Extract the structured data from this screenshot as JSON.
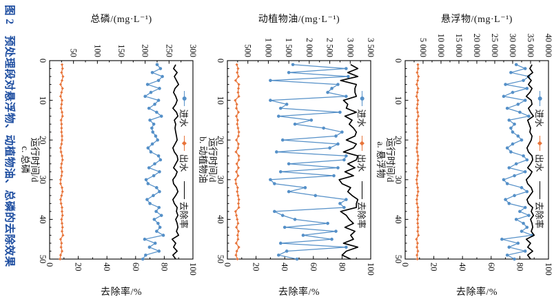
{
  "figure": {
    "caption": "图 2　预处理段对悬浮物、动植物油、总磷的去除效果",
    "caption_color": "#1d4da0"
  },
  "legend": {
    "influent": "进水",
    "effluent": "出水",
    "removal": "去除率"
  },
  "colors": {
    "influent": "#5590c8",
    "effluent": "#e8743a",
    "removal": "#000000",
    "axis": "#000000"
  },
  "days": [
    1,
    2,
    3,
    4,
    5,
    6,
    7,
    8,
    9,
    10,
    11,
    12,
    13,
    14,
    15,
    16,
    17,
    18,
    19,
    20,
    21,
    22,
    23,
    24,
    25,
    26,
    27,
    28,
    29,
    30,
    31,
    32,
    33,
    34,
    35,
    36,
    37,
    38,
    39,
    40,
    41,
    42,
    43,
    44,
    45,
    46,
    47,
    48,
    49,
    50
  ],
  "chart_data": [
    {
      "id": "a",
      "type": "line",
      "subtitle": "a. 悬浮物",
      "y_left_title": "悬浮物/(mg·L⁻¹)",
      "y_right_title": "去除率/%",
      "x_title": "运行时间/d",
      "x_range": [
        0,
        50
      ],
      "x_minor_step": 2,
      "x_tick_values": [
        0,
        10,
        20,
        30,
        40,
        50
      ],
      "x_tick_labels": [
        "0",
        "10",
        "20",
        "30",
        "40",
        "50"
      ],
      "y_left_range": [
        0,
        40000
      ],
      "y_left_minor_step": 2500,
      "y_left_tick_values": [
        5000,
        10000,
        15000,
        20000,
        25000,
        30000,
        35000,
        40000
      ],
      "y_left_tick_labels": [
        "5 000",
        "10 000",
        "15 000",
        "20 000",
        "25 000",
        "30 000",
        "35 000",
        "40 000"
      ],
      "y_right_range": [
        0,
        100
      ],
      "y_right_minor_step": 10,
      "y_right_tick_values": [
        0,
        20,
        40,
        60,
        80,
        100
      ],
      "y_right_tick_labels": [
        "0",
        "20",
        "40",
        "60",
        "80",
        "100"
      ],
      "series": [
        {
          "name": "进水",
          "role": "influent",
          "axis": "left",
          "marker": "circle",
          "values": [
            31000,
            33500,
            29500,
            34500,
            33000,
            28000,
            34000,
            30000,
            27500,
            33500,
            31500,
            28500,
            32000,
            34500,
            29000,
            30500,
            29500,
            30000,
            31500,
            32500,
            30000,
            28500,
            29500,
            33000,
            34000,
            31000,
            29000,
            33500,
            30500,
            27500,
            28500,
            32500,
            34000,
            30500,
            28000,
            29000,
            33500,
            32000,
            34500,
            31000,
            33000,
            34000,
            32500,
            35500,
            27000,
            31500,
            29000,
            33500,
            28500,
            30500
          ]
        },
        {
          "name": "出水",
          "role": "effluent",
          "axis": "left",
          "marker": "diamond",
          "values": [
            3550,
            3600,
            3350,
            3700,
            3500,
            3250,
            3600,
            3400,
            3200,
            3550,
            3450,
            3300,
            3500,
            3650,
            3300,
            3400,
            3350,
            3400,
            3450,
            3500,
            3400,
            3250,
            3350,
            3550,
            3600,
            3450,
            3300,
            3550,
            3400,
            3200,
            3300,
            3500,
            3600,
            3400,
            3250,
            3300,
            3550,
            3500,
            3650,
            3450,
            3500,
            3600,
            3500,
            3700,
            3150,
            3450,
            3300,
            3550,
            3300,
            3400
          ]
        },
        {
          "name": "去除率",
          "role": "removal",
          "axis": "right",
          "marker": "none",
          "values": [
            88.5,
            87,
            89,
            85.5,
            88,
            86,
            88.5,
            87,
            84.5,
            88,
            88.5,
            86,
            87.5,
            89.5,
            85.5,
            86.5,
            87.5,
            87,
            88.5,
            88,
            86.5,
            85,
            86,
            88.5,
            89,
            87.5,
            85.5,
            88.5,
            87,
            84.5,
            85.5,
            88,
            89,
            87,
            85,
            86,
            89,
            88,
            89.5,
            87.5,
            88.5,
            89,
            88,
            90,
            84.5,
            87.5,
            85.5,
            89,
            85.5,
            87.5
          ]
        }
      ]
    },
    {
      "id": "b",
      "type": "line",
      "subtitle": "b. 动植物油",
      "y_left_title": "动植物油/(mg·L⁻¹)",
      "y_right_title": "去除率/%",
      "x_title": "运行时间/d",
      "x_range": [
        0,
        50
      ],
      "x_minor_step": 2,
      "x_tick_values": [
        0,
        10,
        20,
        30,
        40,
        50
      ],
      "x_tick_labels": [
        "0",
        "10",
        "20",
        "30",
        "40",
        "50"
      ],
      "y_left_range": [
        0,
        3500
      ],
      "y_left_minor_step": 250,
      "y_left_tick_values": [
        500,
        1000,
        1500,
        2000,
        2500,
        3000,
        3500
      ],
      "y_left_tick_labels": [
        "500",
        "1 000",
        "1 500",
        "2 000",
        "2 500",
        "3 000",
        "3 500"
      ],
      "y_right_range": [
        0,
        100
      ],
      "y_right_minor_step": 10,
      "y_right_tick_values": [
        0,
        20,
        40,
        60,
        80,
        100
      ],
      "y_right_tick_labels": [
        "0",
        "20",
        "40",
        "60",
        "80",
        "100"
      ],
      "series": [
        {
          "name": "进水",
          "role": "influent",
          "axis": "left",
          "marker": "circle",
          "values": [
            1600,
            2900,
            1500,
            2950,
            1050,
            2700,
            2550,
            2450,
            2900,
            1050,
            1450,
            1300,
            2750,
            1250,
            2050,
            1650,
            2350,
            2800,
            2650,
            1350,
            2700,
            2500,
            1200,
            2900,
            2850,
            1500,
            2700,
            1300,
            2600,
            1050,
            1150,
            1900,
            1500,
            2150,
            2900,
            2750,
            2850,
            1150,
            1350,
            1650,
            2450,
            1400,
            2650,
            1850,
            2550,
            1300,
            2900,
            1450,
            1250,
            1700
          ]
        },
        {
          "name": "出水",
          "role": "effluent",
          "axis": "left",
          "marker": "diamond",
          "values": [
            230,
            260,
            240,
            270,
            200,
            280,
            270,
            260,
            280,
            190,
            230,
            220,
            270,
            220,
            250,
            240,
            260,
            280,
            270,
            220,
            270,
            260,
            210,
            280,
            280,
            230,
            270,
            220,
            260,
            200,
            210,
            250,
            240,
            260,
            280,
            270,
            280,
            200,
            220,
            240,
            260,
            220,
            270,
            250,
            260,
            215,
            280,
            230,
            210,
            245
          ]
        },
        {
          "name": "去除率",
          "role": "removal",
          "axis": "right",
          "marker": "none",
          "values": [
            86,
            91,
            84,
            91,
            79,
            90,
            89,
            89,
            90,
            81,
            84,
            83,
            90,
            82,
            87,
            85,
            88,
            90,
            89,
            83,
            90,
            88,
            81,
            91,
            90,
            84,
            89,
            82,
            88,
            78,
            80,
            86,
            84,
            87,
            91,
            90,
            90,
            79,
            83,
            85,
            88,
            82,
            89,
            86,
            88,
            81,
            91,
            83,
            80,
            86
          ]
        }
      ]
    },
    {
      "id": "c",
      "type": "line",
      "subtitle": "c. 总磷",
      "y_left_title": "总磷/(mg·L⁻¹)",
      "y_right_title": "去除率/%",
      "x_title": "运行时间/d",
      "x_range": [
        0,
        50
      ],
      "x_minor_step": 2,
      "x_tick_values": [
        0,
        10,
        20,
        30,
        40,
        50
      ],
      "x_tick_labels": [
        "0",
        "10",
        "20",
        "30",
        "40",
        "50"
      ],
      "y_left_range": [
        0,
        300
      ],
      "y_left_minor_step": 25,
      "y_left_tick_values": [
        50,
        100,
        150,
        200,
        250,
        300
      ],
      "y_left_tick_labels": [
        "50",
        "100",
        "150",
        "200",
        "250",
        "300"
      ],
      "y_right_range": [
        0,
        100
      ],
      "y_right_minor_step": 10,
      "y_right_tick_values": [
        0,
        20,
        40,
        60,
        80,
        100
      ],
      "y_right_tick_labels": [
        "0",
        "20",
        "40",
        "60",
        "80",
        "100"
      ],
      "series": [
        {
          "name": "进水",
          "role": "influent",
          "axis": "left",
          "marker": "circle",
          "values": [
            225,
            232,
            215,
            236,
            228,
            205,
            230,
            212,
            200,
            228,
            220,
            208,
            224,
            234,
            210,
            218,
            214,
            216,
            222,
            226,
            215,
            206,
            212,
            228,
            232,
            220,
            208,
            230,
            218,
            202,
            206,
            224,
            230,
            217,
            204,
            210,
            229,
            223,
            234,
            219,
            227,
            231,
            224,
            238,
            199,
            221,
            209,
            229,
            201,
            195
          ]
        },
        {
          "name": "出水",
          "role": "effluent",
          "axis": "left",
          "marker": "diamond",
          "values": [
            26,
            27,
            25,
            28,
            26,
            23,
            27,
            25,
            23,
            26,
            25,
            24,
            26,
            27,
            24,
            25,
            25,
            25,
            26,
            26,
            25,
            23,
            24,
            26,
            27,
            25,
            24,
            26,
            25,
            23,
            23,
            26,
            27,
            25,
            23,
            24,
            26,
            26,
            27,
            25,
            26,
            27,
            26,
            28,
            23,
            25,
            24,
            26,
            23,
            22
          ]
        },
        {
          "name": "去除率",
          "role": "removal",
          "axis": "right",
          "marker": "none",
          "values": [
            88,
            86.5,
            89,
            87,
            88.5,
            90,
            87.5,
            86.5,
            88,
            89,
            88,
            86,
            88.5,
            89.5,
            87,
            88,
            87.5,
            88,
            88.5,
            89,
            87.5,
            86,
            87,
            89,
            89.5,
            88,
            86.5,
            89,
            88,
            86,
            86.5,
            88.5,
            89.5,
            88,
            86,
            87,
            89,
            88.5,
            89.5,
            88,
            89,
            89.5,
            88.5,
            90,
            85.5,
            88,
            86.5,
            89,
            86,
            88
          ]
        }
      ]
    }
  ]
}
